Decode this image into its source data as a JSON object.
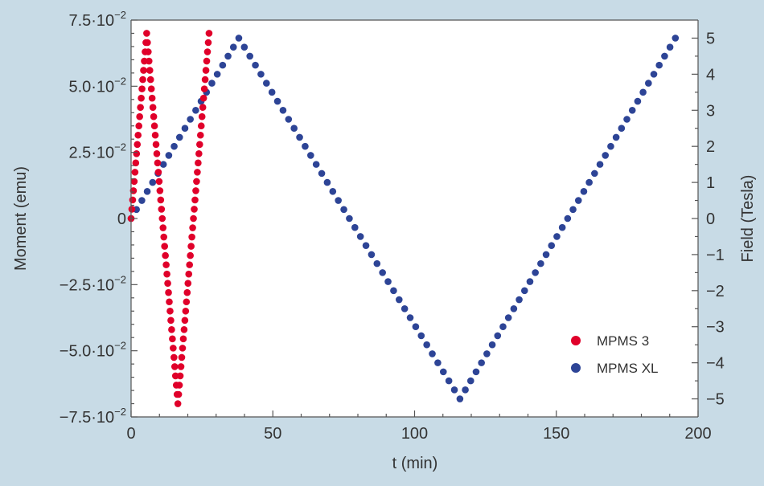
{
  "chart_data": {
    "type": "scatter",
    "xlabel": "t (min)",
    "ylabel_left": "Moment (emu)",
    "ylabel_right": "Field (Tesla)",
    "xlim": [
      0,
      200
    ],
    "ylim_left": [
      -0.075,
      0.075
    ],
    "ylim_right": [
      -5.5,
      5.5
    ],
    "x_ticks": [
      "0",
      "50",
      "100",
      "150",
      "200"
    ],
    "x_tick_values": [
      0,
      50,
      100,
      150,
      200
    ],
    "left_ticks": [
      {
        "value": 0.075,
        "mant": "7.5·10",
        "exp": "−2"
      },
      {
        "value": 0.05,
        "mant": "5.0·10",
        "exp": "−2"
      },
      {
        "value": 0.025,
        "mant": "2.5·10",
        "exp": "−2"
      },
      {
        "value": 0,
        "mant": "0",
        "exp": ""
      },
      {
        "value": -0.025,
        "mant": "−2.5·10",
        "exp": "−2"
      },
      {
        "value": -0.05,
        "mant": "−5.0·10",
        "exp": "−2"
      },
      {
        "value": -0.075,
        "mant": "−7.5·10",
        "exp": "−2"
      }
    ],
    "right_ticks": [
      "5",
      "4",
      "3",
      "2",
      "1",
      "0",
      "−1",
      "−2",
      "−3",
      "−4",
      "−5"
    ],
    "right_tick_values": [
      5,
      4,
      3,
      2,
      1,
      0,
      -1,
      -2,
      -3,
      -4,
      -5
    ],
    "legend_position": "bottom-right",
    "series": [
      {
        "name": "MPMS 3",
        "color": "#e0002a",
        "axis": "left",
        "sweeps": [
          {
            "t0": 0,
            "t1": 5.5,
            "v0": 0,
            "v1": 0.07,
            "steps": 20
          },
          {
            "t0": 5.5,
            "t1": 16.5,
            "v0": 0.07,
            "v1": -0.07,
            "steps": 40
          },
          {
            "t0": 16.5,
            "t1": 27.5,
            "v0": -0.07,
            "v1": 0.07,
            "steps": 40
          }
        ]
      },
      {
        "name": "MPMS XL",
        "color": "#2d4496",
        "axis": "right",
        "sweeps": [
          {
            "t0": 0,
            "t1": 38,
            "v0": 0,
            "v1": 5,
            "steps": 20
          },
          {
            "t0": 38,
            "t1": 116,
            "v0": 5,
            "v1": -5,
            "steps": 40
          },
          {
            "t0": 116,
            "t1": 192,
            "v0": -5,
            "v1": 5,
            "steps": 40
          }
        ]
      }
    ]
  }
}
